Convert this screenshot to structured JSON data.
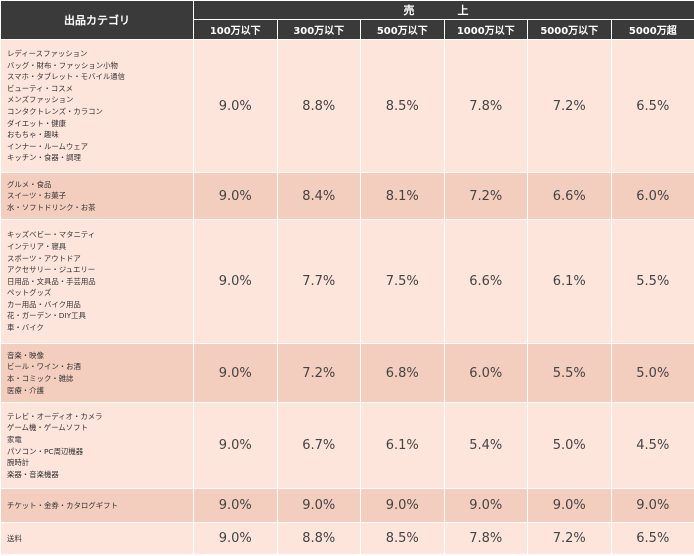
{
  "header": {
    "category_label": "出品カテゴリ",
    "sales_label": "売　上",
    "tiers": [
      "100万以下",
      "300万以下",
      "500万以下",
      "1000万以下",
      "5000万以下",
      "5000万超"
    ]
  },
  "rows": [
    {
      "categories": [
        "レディースファッション",
        "バッグ・財布・ファッション小物",
        "スマホ・タブレット・モバイル通信",
        "ビューティ・コスメ",
        "メンズファッション",
        "コンタクトレンズ・カラコン",
        "ダイエット・健康",
        "おもちゃ・趣味",
        "インナー・ルームウェア",
        "キッチン・食器・調理"
      ],
      "values": [
        "9.0%",
        "8.8%",
        "8.5%",
        "7.8%",
        "7.2%",
        "6.5%"
      ]
    },
    {
      "categories": [
        "グルメ・食品",
        "スイーツ・お菓子",
        "水・ソフトドリンク・お茶"
      ],
      "values": [
        "9.0%",
        "8.4%",
        "8.1%",
        "7.2%",
        "6.6%",
        "6.0%"
      ]
    },
    {
      "categories": [
        "キッズベビー・マタニティ",
        "インテリア・寝具",
        "スポーツ・アウトドア",
        "アクセサリー・ジュエリー",
        "日用品・文具品・手芸用品",
        "ペットグッズ",
        "カー用品・バイク用品",
        "花・ガーデン・DIY工具",
        "車・バイク"
      ],
      "values": [
        "9.0%",
        "7.7%",
        "7.5%",
        "6.6%",
        "6.1%",
        "5.5%"
      ]
    },
    {
      "categories": [
        "音楽・映像",
        "ビール・ワイン・お酒",
        "本・コミック・雑誌",
        "医療・介護"
      ],
      "values": [
        "9.0%",
        "7.2%",
        "6.8%",
        "6.0%",
        "5.5%",
        "5.0%"
      ]
    },
    {
      "categories": [
        "テレビ・オーディオ・カメラ",
        "ゲーム機・ゲームソフト",
        "家電",
        "パソコン・PC周辺機器",
        "腕時計",
        "楽器・音楽機器"
      ],
      "values": [
        "9.0%",
        "6.7%",
        "6.1%",
        "5.4%",
        "5.0%",
        "4.5%"
      ]
    },
    {
      "categories": [
        "チケット・金券・カタログギフト"
      ],
      "values": [
        "9.0%",
        "9.0%",
        "9.0%",
        "9.0%",
        "9.0%",
        "9.0%"
      ]
    },
    {
      "categories": [
        "送料"
      ],
      "values": [
        "9.0%",
        "8.8%",
        "8.5%",
        "7.8%",
        "7.2%",
        "6.5%"
      ]
    }
  ]
}
